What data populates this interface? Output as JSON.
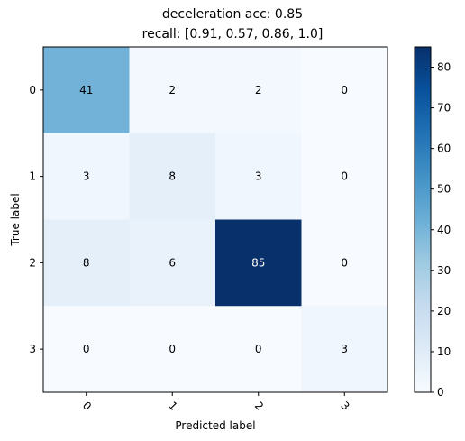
{
  "chart_data": {
    "type": "heatmap",
    "title_line1": "deceleration acc: 0.85",
    "title_line2": "recall: [0.91, 0.57, 0.86, 1.0]",
    "xlabel": "Predicted label",
    "ylabel": "True label",
    "x_tick_labels": [
      "0",
      "1",
      "2",
      "3"
    ],
    "y_tick_labels": [
      "0",
      "1",
      "2",
      "3"
    ],
    "matrix": [
      [
        41,
        2,
        2,
        0
      ],
      [
        3,
        8,
        3,
        0
      ],
      [
        8,
        6,
        85,
        0
      ],
      [
        0,
        0,
        0,
        3
      ]
    ],
    "colorbar": {
      "colormap": "Blues",
      "range": [
        0,
        85
      ],
      "ticks": [
        0,
        10,
        20,
        30,
        40,
        50,
        60,
        70,
        80
      ]
    }
  }
}
